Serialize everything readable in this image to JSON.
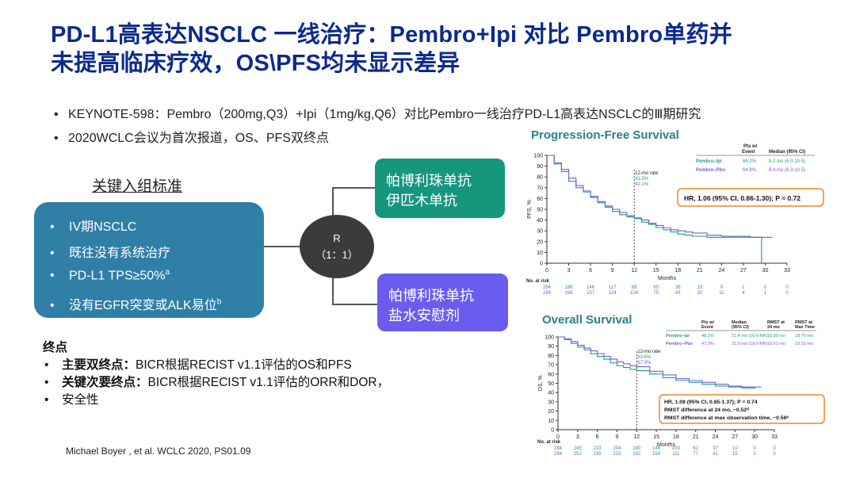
{
  "slide": {
    "title_line1": "PD-L1高表达NSCLC 一线治疗：Pembro+Ipi 对比 Pembro单药并",
    "title_line2": "未提高临床疗效，OS\\PFS均未显示差异"
  },
  "bullets": [
    "KEYNOTE-598：Pembro（200mg,Q3）+Ipi（1mg/kg,Q6）对比Pembro一线治疗PD-L1高表达NSCLC的Ⅲ期研究",
    "2020WCLC会议为首次报道，OS、PFS双终点"
  ],
  "design": {
    "criteria_title": "关键入组标准",
    "criteria": [
      {
        "text": "IV期NSCLC",
        "sup": ""
      },
      {
        "text": "既往没有系统治疗",
        "sup": ""
      },
      {
        "text": "PD-L1 TPS≥50%",
        "sup": "a"
      },
      {
        "text": "没有EGFR突变或ALK易位",
        "sup": "b"
      }
    ],
    "bullet_glyph": "•",
    "randomization_line1": "R",
    "randomization_line2": "（1：1）",
    "arm1_line1": "帕博利珠单抗",
    "arm1_line2": "伊匹木单抗",
    "arm2_line1": "帕博利珠单抗",
    "arm2_line2": " 盐水安慰剂",
    "colors": {
      "criteria_box": "#2f7fa7",
      "arm1": "#15967d",
      "arm2": "#6b5cf0",
      "r_node": "#3b3b3b"
    }
  },
  "endpoints": {
    "heading": "终点",
    "primary_label": "主要双终点：",
    "primary_text": "BICR根据RECIST v1.1评估的OS和PFS",
    "secondary_label": "关键次要终点：",
    "secondary_text_line1": "BICR根据RECIST v1.1评估的ORR和DOR，",
    "secondary_text_line2": "安全性"
  },
  "citation": "Michael Boyer , et al. WCLC 2020, PS01.09",
  "chart_data": [
    {
      "type": "line",
      "title": "Progression-Free Survival",
      "xlabel": "Months",
      "ylabel": "PFS, %",
      "xlim": [
        0,
        33
      ],
      "ylim": [
        0,
        100
      ],
      "x_ticks": [
        0,
        3,
        6,
        9,
        12,
        15,
        18,
        21,
        24,
        27,
        30,
        33
      ],
      "y_ticks": [
        0,
        10,
        20,
        30,
        40,
        50,
        60,
        70,
        80,
        90,
        100
      ],
      "landmark": {
        "label": "12-mo rate",
        "values": [
          "41.3%",
          "42.1%"
        ]
      },
      "legend_header": [
        "Pts w/\nEvent",
        "Median (95% CI)"
      ],
      "series": [
        {
          "name": "Pembro–Ipi",
          "color": "#1c9d82",
          "event_pct": "66.2%",
          "median": "8.2 mo (6.0-10.5)",
          "x": [
            0,
            1,
            2,
            3,
            4,
            5,
            6,
            7,
            8,
            9,
            10,
            11,
            12,
            13,
            14,
            15,
            16,
            17,
            18,
            19,
            20,
            22,
            24,
            26,
            27,
            29,
            29.5
          ],
          "y": [
            100,
            92,
            85,
            76,
            70,
            66,
            61,
            56,
            52,
            48,
            45,
            43,
            41.3,
            38,
            36,
            33,
            31,
            29,
            27,
            26,
            25,
            24,
            24,
            24,
            24,
            24,
            0
          ]
        },
        {
          "name": "Pembro–Pbo",
          "color": "#6f5fd6",
          "event_pct": "64.8%",
          "median": "8.4 mo (6.3-10.5)",
          "x": [
            0,
            1,
            2,
            3,
            4,
            5,
            6,
            7,
            8,
            9,
            10,
            11,
            12,
            13,
            14,
            15,
            16,
            17,
            18,
            19,
            20,
            22,
            24,
            26,
            28,
            30,
            31
          ],
          "y": [
            100,
            93,
            87,
            79,
            72,
            67,
            62,
            57,
            53,
            50,
            47,
            44,
            42.1,
            40,
            37,
            35,
            33,
            31,
            30,
            29,
            28,
            26,
            25,
            25,
            24,
            24,
            24
          ]
        }
      ],
      "hr_text": "HR, 1.06 (95% CI, 0.86-1.30); P = 0.72",
      "at_risk_label": "No. at risk",
      "at_risk": [
        [
          "284",
          "186",
          "146",
          "117",
          "89",
          "65",
          "36",
          "19",
          "9",
          "1",
          "0",
          "0"
        ],
        [
          "284",
          "198",
          "157",
          "124",
          "104",
          "75",
          "43",
          "20",
          "11",
          "4",
          "1",
          "0"
        ]
      ]
    },
    {
      "type": "line",
      "title": "Overall Survival",
      "xlabel": "Months",
      "ylabel": "OS, %",
      "xlim": [
        0,
        33
      ],
      "ylim": [
        0,
        100
      ],
      "x_ticks": [
        0,
        3,
        6,
        9,
        12,
        15,
        18,
        21,
        24,
        27,
        30,
        33
      ],
      "y_ticks": [
        0,
        10,
        20,
        30,
        40,
        50,
        60,
        70,
        80,
        90,
        100
      ],
      "landmark": {
        "label": "12-mo rate",
        "values": [
          "63.6%",
          "67.9%"
        ]
      },
      "legend_header": [
        "Pts w/\nEvent",
        "Median\n(95% CI)",
        "RMST at\n24 mo",
        "RMST at\nMax Time"
      ],
      "series": [
        {
          "name": "Pembro–Ipi",
          "color": "#1c9d82",
          "event_pct": "48.2%",
          "median": "21.4 mo (16.6-NR)",
          "rmst24": "16.09 mo",
          "rmstmax": "18.76 mo",
          "x": [
            0,
            1,
            2,
            3,
            4,
            5,
            6,
            7,
            8,
            9,
            10,
            11,
            12,
            14,
            16,
            18,
            20,
            22,
            24,
            26,
            28,
            30
          ],
          "y": [
            100,
            97,
            93,
            89,
            86,
            82,
            79,
            76,
            72,
            69,
            67,
            65,
            63.6,
            60,
            56,
            53,
            51,
            49,
            47,
            46,
            45,
            44
          ]
        },
        {
          "name": "Pembro–Pbo",
          "color": "#6f5fd6",
          "event_pct": "47.3%",
          "median": "21.9 mo (18.0-NR)",
          "rmst24": "16.61 mo",
          "rmstmax": "19.32 mo",
          "x": [
            0,
            1,
            2,
            3,
            4,
            5,
            6,
            7,
            8,
            9,
            10,
            11,
            12,
            14,
            16,
            18,
            20,
            22,
            24,
            26,
            28,
            30,
            31
          ],
          "y": [
            100,
            98,
            95,
            91,
            88,
            85,
            82,
            79,
            76,
            73,
            71,
            69,
            67.9,
            63,
            59,
            55,
            53,
            51,
            49,
            47,
            46,
            46,
            46
          ]
        }
      ],
      "stats_lines": [
        "HR, 1.08 (95% CI, 0.85-1.37); P = 0.74",
        "RMST difference at 24 mo, −0.52ᵈ",
        "RMST difference at max observation time, −0.56ᵉ"
      ],
      "at_risk_label": "No. at risk",
      "at_risk": [
        [
          "284",
          "245",
          "223",
          "204",
          "180",
          "146",
          "100",
          "62",
          "37",
          "10",
          "0",
          "0"
        ],
        [
          "284",
          "252",
          "230",
          "215",
          "192",
          "154",
          "111",
          "77",
          "41",
          "15",
          "2",
          "0"
        ]
      ]
    }
  ]
}
